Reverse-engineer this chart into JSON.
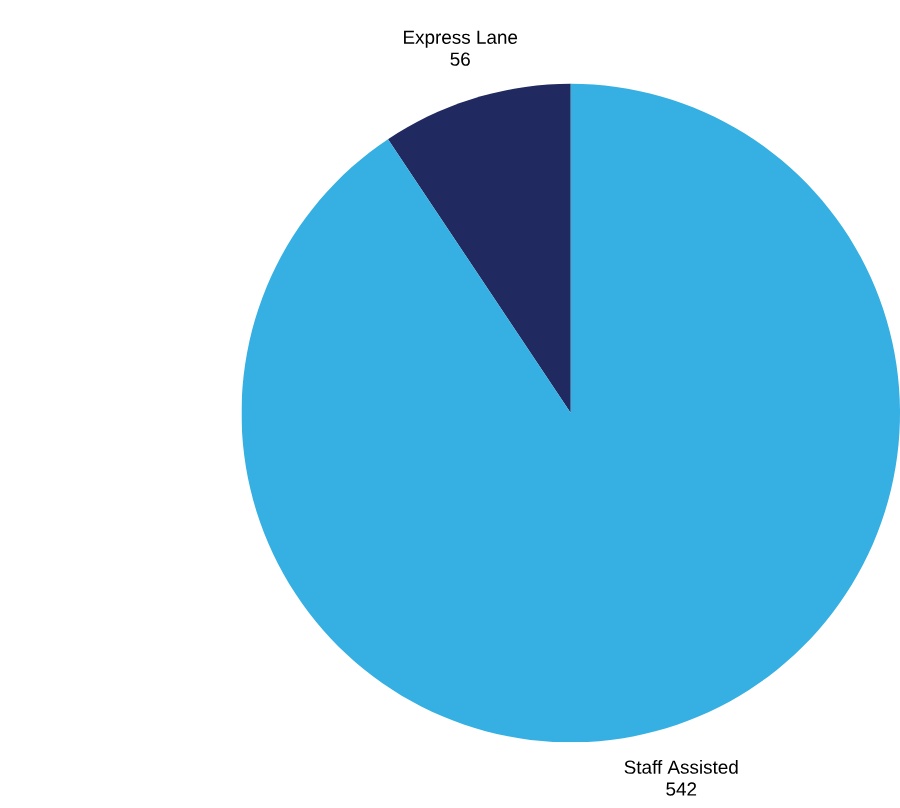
{
  "chart_data": {
    "type": "pie",
    "categories": [
      "Express Lane",
      "Staff Assisted"
    ],
    "values": [
      56,
      542
    ],
    "colors": [
      "#202a60",
      "#36b0e3"
    ],
    "data_labels": true
  }
}
